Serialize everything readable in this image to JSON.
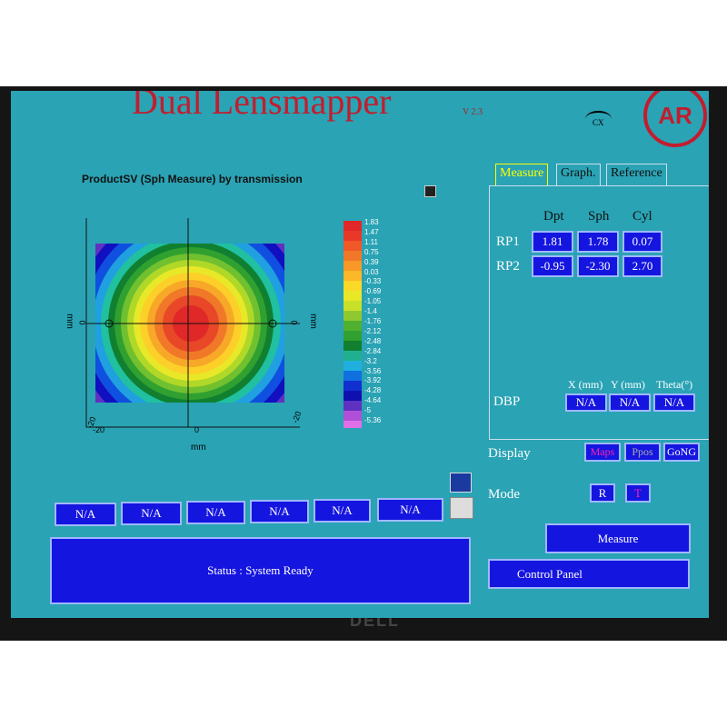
{
  "header": {
    "title": "Dual Lensmapper",
    "version": "V 2.3",
    "eye_icon": "CX",
    "logo": "AR"
  },
  "map_panel": {
    "title": "ProductSV (Sph Measure) by transmission",
    "x_axis_label": "mm",
    "left_axis_label": "mm",
    "right_axis_label": "mm",
    "left_tick": "0",
    "right_tick": "0",
    "bottom_ticks": [
      "-20",
      "0"
    ],
    "corner_ticks": [
      "-20",
      "-20"
    ],
    "scale_labels": [
      "1.83",
      "1.47",
      "1.11",
      "0.75",
      "0.39",
      "0.03",
      "-0.33",
      "-0.69",
      "-1.05",
      "-1.4",
      "-1.76",
      "-2.12",
      "-2.48",
      "-2.84",
      "-3.2",
      "-3.56",
      "-3.92",
      "-4.28",
      "-4.64",
      "-5",
      "-5.36"
    ]
  },
  "tabs": [
    "Measure",
    "Graph.",
    "Reference"
  ],
  "measure_table": {
    "columns": [
      "Dpt",
      "Sph",
      "Cyl"
    ],
    "rows": [
      {
        "label": "RP1",
        "values": [
          "1.81",
          "1.78",
          "0.07"
        ]
      },
      {
        "label": "RP2",
        "values": [
          "-0.95",
          "-2.30",
          "2.70"
        ]
      }
    ]
  },
  "dbp": {
    "label": "DBP",
    "columns": [
      "X (mm)",
      "Y (mm)",
      "Theta(°)"
    ],
    "values": [
      "N/A",
      "N/A",
      "N/A"
    ]
  },
  "display": {
    "label": "Display",
    "buttons": [
      "Maps",
      "Ppos",
      "GoNG"
    ]
  },
  "mode": {
    "label": "Mode",
    "buttons": [
      "R",
      "T"
    ]
  },
  "actions": {
    "measure": "Measure",
    "control_panel": "Control Panel"
  },
  "bottom_fields": [
    "N/A",
    "N/A",
    "N/A",
    "N/A",
    "N/A",
    "N/A"
  ],
  "status": "Status : System Ready",
  "bezel": {
    "brand": "DELL"
  }
}
